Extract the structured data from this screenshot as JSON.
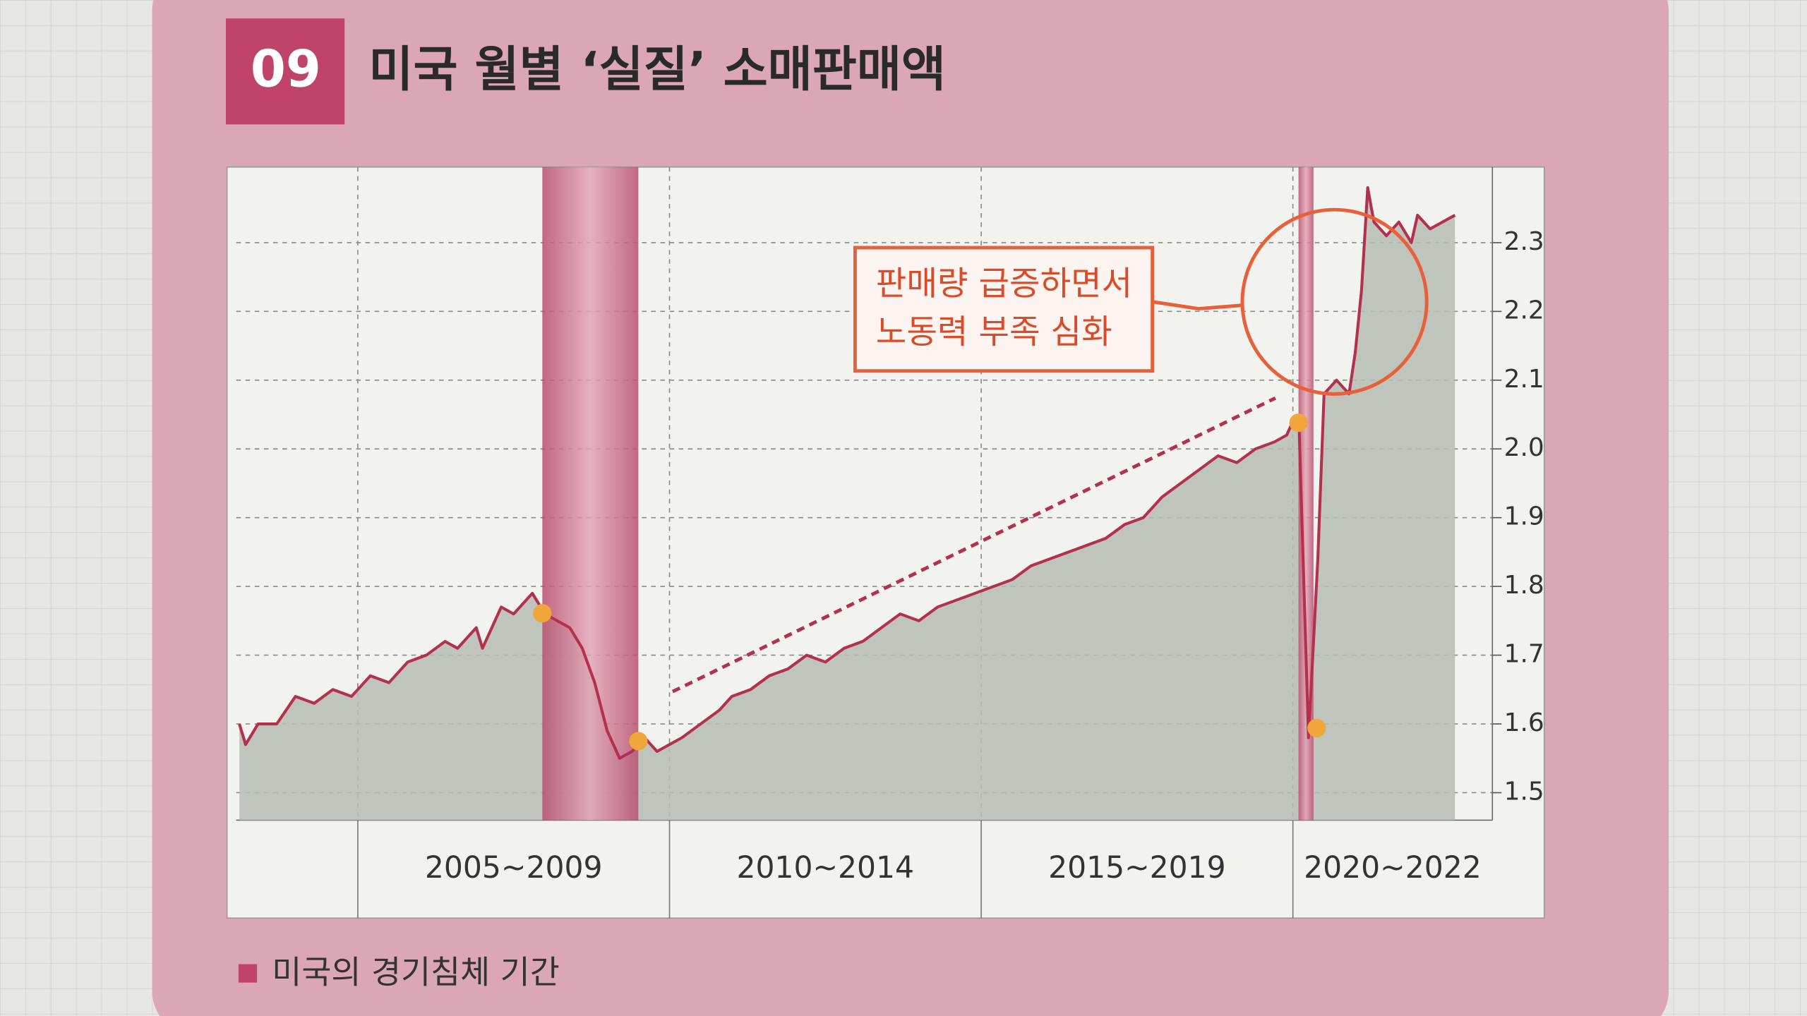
{
  "chart_data": {
    "type": "line",
    "badge": "09",
    "title": "미국 월별 ‘실질’ 소매판매액",
    "x": [
      2003.1,
      2003.2,
      2003.4,
      2003.7,
      2004.0,
      2004.3,
      2004.6,
      2004.9,
      2005.2,
      2005.5,
      2005.8,
      2006.1,
      2006.4,
      2006.6,
      2006.9,
      2007.0,
      2007.3,
      2007.5,
      2007.8,
      2008.0,
      2008.2,
      2008.4,
      2008.6,
      2008.8,
      2009.0,
      2009.2,
      2009.4,
      2009.6,
      2009.8,
      2010.0,
      2010.2,
      2010.5,
      2010.8,
      2011.0,
      2011.3,
      2011.6,
      2011.9,
      2012.2,
      2012.5,
      2012.8,
      2013.1,
      2013.4,
      2013.7,
      2014.0,
      2014.3,
      2014.6,
      2014.9,
      2015.2,
      2015.5,
      2015.8,
      2016.1,
      2016.4,
      2016.7,
      2017.0,
      2017.3,
      2017.6,
      2017.9,
      2018.2,
      2018.5,
      2018.8,
      2019.1,
      2019.4,
      2019.7,
      2019.9,
      2020.0,
      2020.1,
      2020.25,
      2020.4,
      2020.5,
      2020.7,
      2020.9,
      2021.0,
      2021.1,
      2021.2,
      2021.3,
      2021.5,
      2021.7,
      2021.9,
      2022.0,
      2022.2,
      2022.4,
      2022.6
    ],
    "values": [
      1.6,
      1.57,
      1.6,
      1.6,
      1.64,
      1.63,
      1.65,
      1.64,
      1.67,
      1.66,
      1.69,
      1.7,
      1.72,
      1.71,
      1.74,
      1.71,
      1.77,
      1.76,
      1.79,
      1.76,
      1.75,
      1.74,
      1.71,
      1.66,
      1.59,
      1.55,
      1.56,
      1.58,
      1.56,
      1.57,
      1.58,
      1.6,
      1.62,
      1.64,
      1.65,
      1.67,
      1.68,
      1.7,
      1.69,
      1.71,
      1.72,
      1.74,
      1.76,
      1.75,
      1.77,
      1.78,
      1.79,
      1.8,
      1.81,
      1.83,
      1.84,
      1.85,
      1.86,
      1.87,
      1.89,
      1.9,
      1.93,
      1.95,
      1.97,
      1.99,
      1.98,
      2.0,
      2.01,
      2.02,
      2.04,
      2.03,
      1.58,
      1.84,
      2.08,
      2.1,
      2.08,
      2.14,
      2.23,
      2.38,
      2.33,
      2.31,
      2.33,
      2.3,
      2.34,
      2.32,
      2.33,
      2.34
    ],
    "color": "#b3304f",
    "area_color": "#b6bdb3",
    "xlim": [
      2003.05,
      2023.2
    ],
    "ylim": [
      1.46,
      2.41
    ],
    "yticks": [
      1.5,
      1.6,
      1.7,
      1.8,
      1.9,
      {
        "value": 2,
        "label": "2.0"
      },
      2.1,
      2.2,
      2.3
    ],
    "grid": true,
    "x_groups": [
      {
        "label": "2005~2009",
        "range": [
          2005,
          2010
        ]
      },
      {
        "label": "2010~2014",
        "range": [
          2010,
          2015
        ]
      },
      {
        "label": "2015~2019",
        "range": [
          2015,
          2020
        ]
      },
      {
        "label": "2020~2022",
        "range": [
          2020,
          2023.2
        ]
      }
    ],
    "shaded_periods": [
      [
        2007.96,
        2009.5
      ],
      [
        2020.09,
        2020.33
      ]
    ],
    "shade_color": "#c8627f",
    "legend": {
      "label": "미국의 경기침체 기간",
      "color": "#c0446a"
    },
    "trend": {
      "x": [
        2010.05,
        2019.72
      ],
      "y": [
        1.647,
        2.074
      ]
    },
    "highlights": {
      "x": [
        2007.96,
        2009.5,
        2020.09,
        2020.38
      ],
      "y": [
        1.761,
        1.575,
        2.038,
        1.594
      ]
    },
    "annotation": [
      "판매량 급증하면서",
      "노동력 부족 심화"
    ]
  }
}
